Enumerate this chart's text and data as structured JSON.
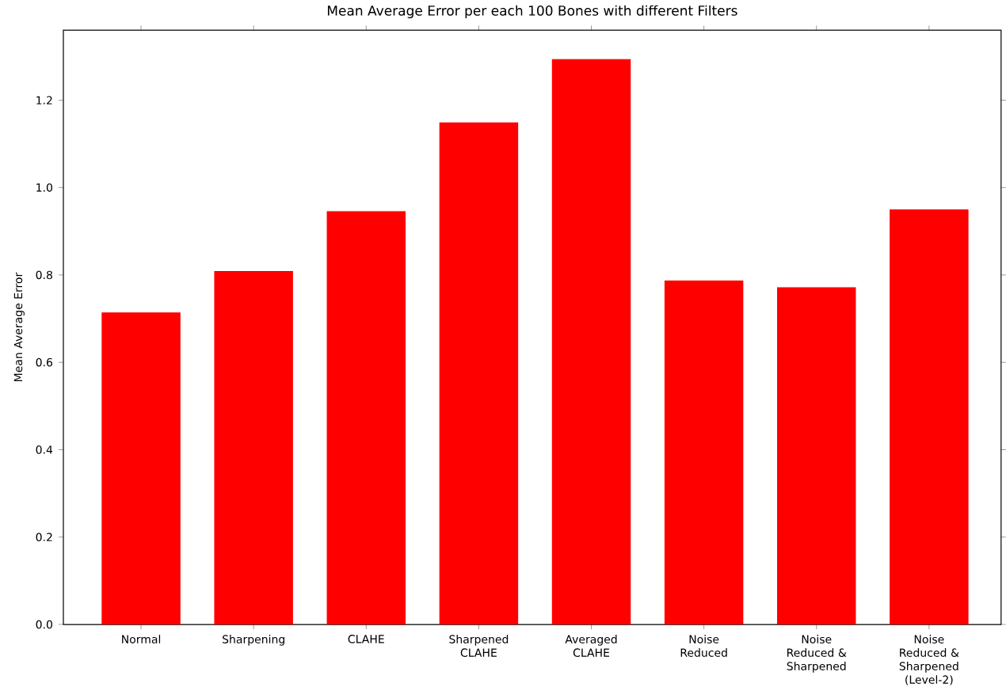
{
  "chart_data": {
    "type": "bar",
    "title": "Mean Average Error per each 100 Bones with different Filters",
    "ylabel": "Mean Average Error",
    "categories": [
      "Normal",
      "Sharpening",
      "CLAHE",
      "Sharpened CLAHE",
      "Averaged CLAHE",
      "Noise Reduced",
      "Noise Reduced & Sharpened",
      "Noise Reduced & Sharpened (Level-2)"
    ],
    "values": [
      0.714,
      0.809,
      0.946,
      1.149,
      1.294,
      0.787,
      0.772,
      0.95
    ],
    "color": "#ff0000",
    "ylim": [
      0,
      1.36
    ],
    "yticks": [
      {
        "value": 0,
        "label": "0.0"
      },
      0.2,
      0.4,
      0.6,
      0.8,
      {
        "value": 1,
        "label": "1.0"
      },
      1.2
    ]
  }
}
